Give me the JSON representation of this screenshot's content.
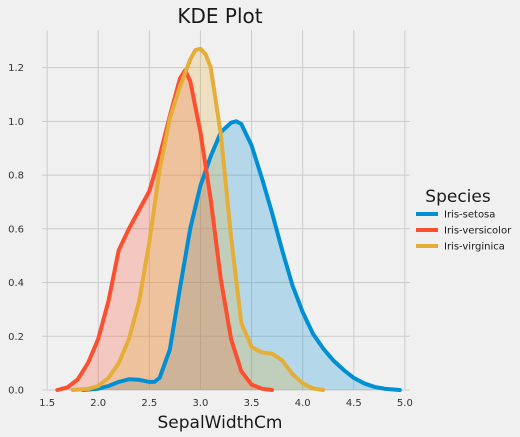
{
  "chart_data": {
    "type": "area",
    "title": "KDE Plot",
    "xlabel": "SepalWidthCm",
    "ylabel": "",
    "xlim": [
      1.45,
      5.05
    ],
    "ylim": [
      0,
      1.34
    ],
    "xticks": [
      1.5,
      2.0,
      2.5,
      3.0,
      3.5,
      4.0,
      4.5,
      5.0
    ],
    "xtick_labels": [
      "1.5",
      "2.0",
      "2.5",
      "3.0",
      "3.5",
      "4.0",
      "4.5",
      "5.0"
    ],
    "yticks": [
      0.0,
      0.2,
      0.4,
      0.6,
      0.8,
      1.0,
      1.2
    ],
    "ytick_labels": [
      "0.0",
      "0.2",
      "0.4",
      "0.6",
      "0.8",
      "1.0",
      "1.2"
    ],
    "grid": true,
    "legend": {
      "title": "Species",
      "placement": "right"
    },
    "series": [
      {
        "name": "Iris-setosa",
        "color": "#008fd5",
        "x": [
          1.85,
          2.0,
          2.1,
          2.2,
          2.3,
          2.4,
          2.5,
          2.55,
          2.6,
          2.7,
          2.8,
          2.9,
          3.0,
          3.1,
          3.2,
          3.3,
          3.35,
          3.4,
          3.5,
          3.6,
          3.7,
          3.8,
          3.9,
          4.0,
          4.1,
          4.2,
          4.3,
          4.4,
          4.5,
          4.6,
          4.7,
          4.8,
          4.95
        ],
        "y": [
          0.0,
          0.005,
          0.015,
          0.03,
          0.04,
          0.038,
          0.03,
          0.03,
          0.045,
          0.15,
          0.38,
          0.6,
          0.76,
          0.87,
          0.96,
          0.995,
          1.0,
          0.99,
          0.91,
          0.79,
          0.66,
          0.52,
          0.39,
          0.29,
          0.21,
          0.155,
          0.11,
          0.075,
          0.045,
          0.025,
          0.012,
          0.005,
          0.0
        ]
      },
      {
        "name": "Iris-versicolor",
        "color": "#fc4f30",
        "x": [
          1.6,
          1.7,
          1.8,
          1.9,
          2.0,
          2.1,
          2.2,
          2.3,
          2.4,
          2.5,
          2.6,
          2.7,
          2.8,
          2.85,
          2.9,
          3.0,
          3.1,
          3.2,
          3.3,
          3.4,
          3.5,
          3.6,
          3.7
        ],
        "y": [
          0.0,
          0.01,
          0.04,
          0.1,
          0.19,
          0.33,
          0.52,
          0.6,
          0.67,
          0.74,
          0.87,
          1.02,
          1.16,
          1.19,
          1.15,
          0.96,
          0.71,
          0.41,
          0.19,
          0.07,
          0.02,
          0.005,
          0.0
        ]
      },
      {
        "name": "Iris-virginica",
        "color": "#e5ae38",
        "x": [
          1.75,
          1.9,
          2.0,
          2.1,
          2.2,
          2.3,
          2.4,
          2.5,
          2.6,
          2.7,
          2.8,
          2.9,
          2.95,
          3.0,
          3.05,
          3.1,
          3.2,
          3.3,
          3.4,
          3.5,
          3.6,
          3.7,
          3.8,
          3.9,
          4.0,
          4.1,
          4.2
        ],
        "y": [
          0.0,
          0.004,
          0.015,
          0.045,
          0.1,
          0.19,
          0.33,
          0.55,
          0.82,
          1.01,
          1.13,
          1.23,
          1.265,
          1.27,
          1.25,
          1.2,
          0.95,
          0.57,
          0.25,
          0.16,
          0.14,
          0.135,
          0.11,
          0.06,
          0.025,
          0.006,
          0.0
        ]
      }
    ]
  }
}
